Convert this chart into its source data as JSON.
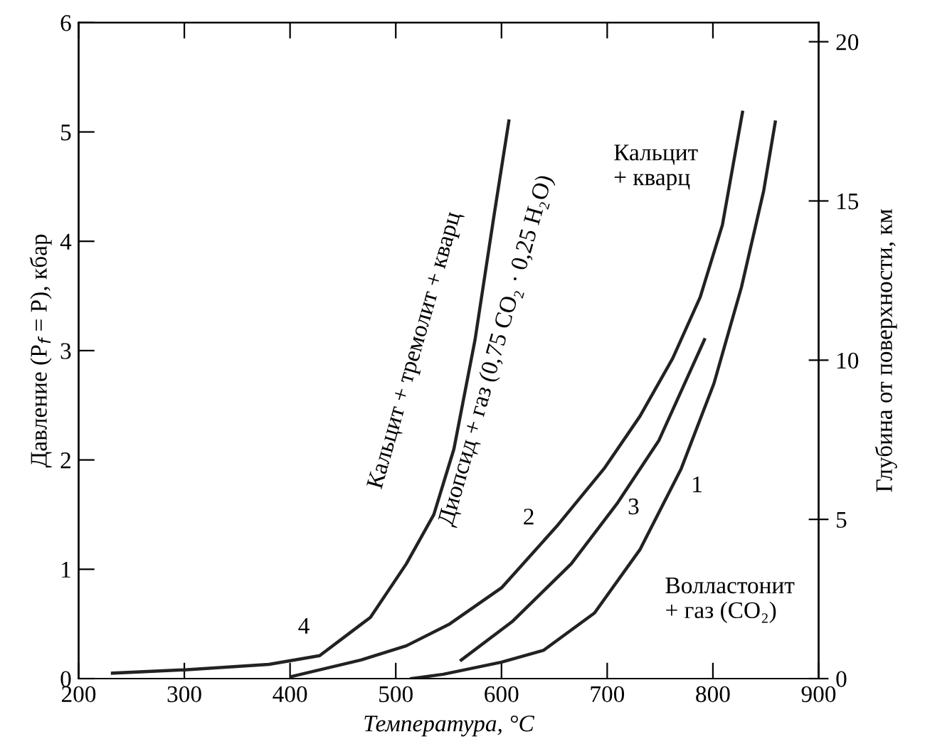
{
  "chart_data": {
    "type": "line",
    "xlabel": "Температура, °C",
    "ylabel": "Давление (P$_{f}$ = P), кбар",
    "y2label": "Глубина от поверхности, км",
    "xlim": [
      200,
      900
    ],
    "xticks": [
      200,
      300,
      400,
      500,
      600,
      700,
      800,
      900
    ],
    "ylim": [
      0,
      6
    ],
    "yticks": [
      0,
      1,
      2,
      3,
      4,
      5,
      6
    ],
    "y2lim": [
      0,
      20.6
    ],
    "y2ticks": [
      0,
      5,
      10,
      15,
      20
    ],
    "grid": false,
    "legend": false,
    "marker": "none",
    "line_style": "solid",
    "series": [
      {
        "name": "4",
        "color": "#222222",
        "x": [
          232,
          300,
          380,
          428,
          476,
          510,
          536,
          555,
          575,
          593,
          607
        ],
        "values": [
          0.05,
          0.08,
          0.13,
          0.21,
          0.56,
          1.05,
          1.5,
          2.1,
          3.1,
          4.24,
          5.1
        ]
      },
      {
        "name": "2",
        "color": "#222222",
        "x": [
          402,
          467,
          510,
          551,
          600,
          652,
          697,
          731,
          762,
          788,
          809,
          828
        ],
        "values": [
          0.02,
          0.17,
          0.3,
          0.5,
          0.83,
          1.39,
          1.92,
          2.4,
          2.93,
          3.49,
          4.15,
          5.18
        ]
      },
      {
        "name": "3",
        "color": "#222222",
        "x": [
          562,
          610,
          666,
          710,
          749,
          792
        ],
        "values": [
          0.17,
          0.52,
          1.05,
          1.61,
          2.18,
          3.1
        ]
      },
      {
        "name": "1",
        "color": "#222222",
        "x": [
          515,
          545,
          600,
          640,
          688,
          731,
          770,
          801,
          827,
          848,
          859
        ],
        "values": [
          0.0,
          0.04,
          0.15,
          0.26,
          0.6,
          1.18,
          1.92,
          2.7,
          3.58,
          4.46,
          5.09
        ]
      }
    ],
    "annotations": [
      "Кальцит + тремолит + кварц",
      "Диопсид + газ (0,75 CO₂ · 0,25 H₂O)",
      "Кальцит\n+ кварц",
      "Волластонит\n+ газ (CO₂)"
    ]
  }
}
